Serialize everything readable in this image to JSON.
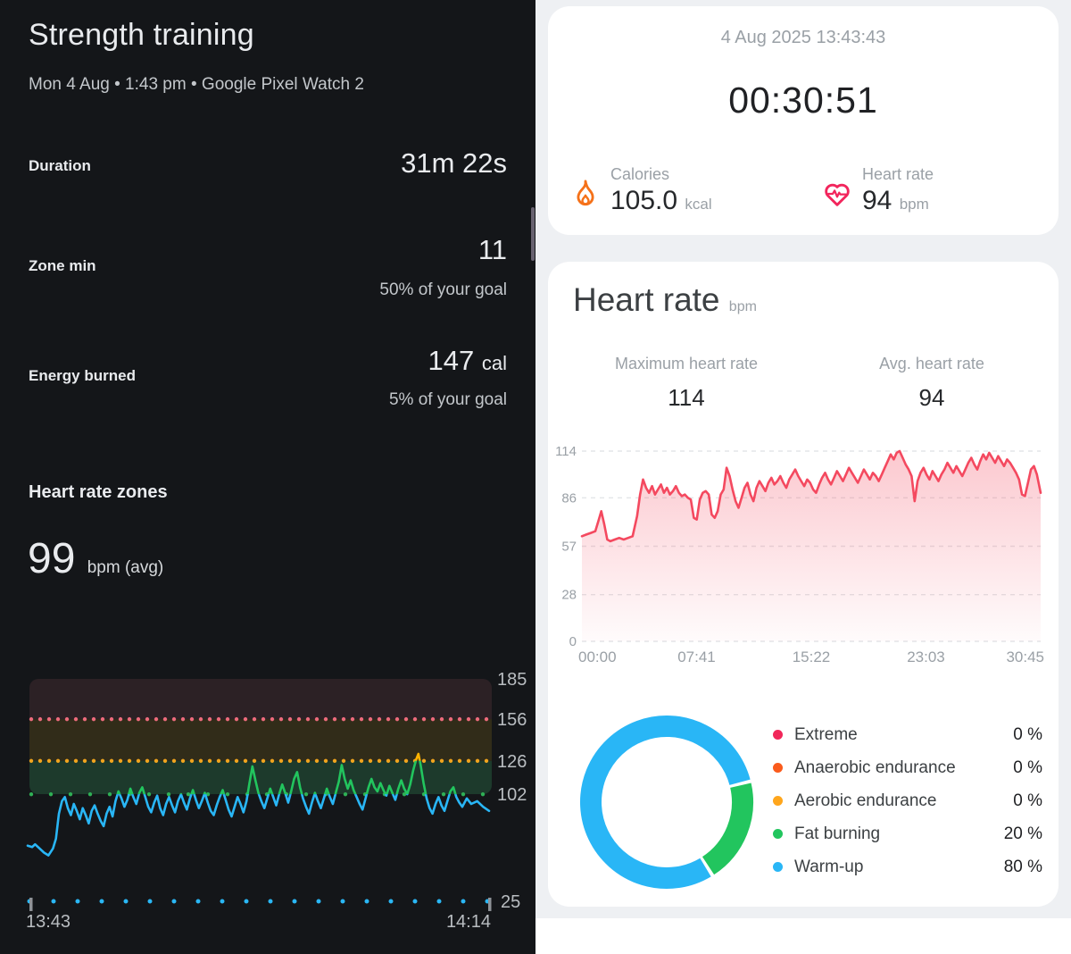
{
  "left_panel": {
    "title": "Strength training",
    "subtitle": "Mon 4 Aug • 1:43 pm • Google Pixel Watch 2",
    "stats": [
      {
        "label": "Duration",
        "value": "31m 22s",
        "unit": "",
        "sub": ""
      },
      {
        "label": "Zone min",
        "value": "11",
        "unit": "",
        "sub": "50% of your goal"
      },
      {
        "label": "Energy burned",
        "value": "147",
        "unit": "cal",
        "sub": "5% of your goal"
      }
    ],
    "zones_header": "Heart rate zones",
    "avg_bpm": "99",
    "avg_bpm_unit": "bpm (avg)"
  },
  "right_panel": {
    "summary_card": {
      "datetime": "4 Aug 2025 13:43:43",
      "timer": "00:30:51",
      "calories": {
        "label": "Calories",
        "value": "105.0",
        "unit": "kcal",
        "icon_color": "#f57119"
      },
      "heart_rate": {
        "label": "Heart rate",
        "value": "94",
        "unit": "bpm",
        "icon_color": "#f2255c"
      }
    },
    "hr_card": {
      "title": "Heart rate",
      "title_unit": "bpm",
      "max_label": "Maximum heart rate",
      "max_value": "114",
      "avg_label": "Avg. heart rate",
      "avg_value": "94"
    }
  },
  "chart_data": [
    {
      "type": "line",
      "id": "zone-chart",
      "title": "Heart rate zones over time",
      "x_range_min": [
        0,
        31
      ],
      "x_tick_labels": [
        "13:43",
        "14:14"
      ],
      "y_axis_labels": [
        185,
        156,
        126,
        102,
        25
      ],
      "axis_label_color": "#b9bdc1",
      "zone_bands": [
        {
          "name": "peak",
          "from": 156,
          "to": 185,
          "fill": "#2c2125",
          "dot_color": "#ec6a7c",
          "dot_gap": 10
        },
        {
          "name": "cardio",
          "from": 126,
          "to": 156,
          "fill": "#312c19",
          "dot_color": "#f0a41e",
          "dot_gap": 10
        },
        {
          "name": "fat-burn",
          "from": 102,
          "to": 126,
          "fill": "#1d3a2c",
          "dot_color": "#2fb055",
          "dot_gap": 22
        }
      ],
      "baseline_dots": {
        "value": 25,
        "color": "#2ab7f5",
        "dot_gap": 27
      },
      "segment_colors": {
        "above_126": "#ffb300",
        "between_102_126": "#22c55e",
        "below_102": "#29b6f6"
      },
      "points": [
        [
          0,
          65
        ],
        [
          0.3,
          64
        ],
        [
          0.5,
          66
        ],
        [
          0.8,
          63
        ],
        [
          1.1,
          60
        ],
        [
          1.4,
          58
        ],
        [
          1.7,
          63
        ],
        [
          1.9,
          70
        ],
        [
          2.1,
          88
        ],
        [
          2.3,
          97
        ],
        [
          2.5,
          100
        ],
        [
          2.7,
          92
        ],
        [
          2.9,
          87
        ],
        [
          3.1,
          95
        ],
        [
          3.3,
          90
        ],
        [
          3.5,
          84
        ],
        [
          3.7,
          92
        ],
        [
          3.9,
          87
        ],
        [
          4.1,
          81
        ],
        [
          4.3,
          90
        ],
        [
          4.5,
          94
        ],
        [
          4.7,
          88
        ],
        [
          4.9,
          83
        ],
        [
          5.1,
          79
        ],
        [
          5.3,
          88
        ],
        [
          5.5,
          93
        ],
        [
          5.7,
          86
        ],
        [
          5.9,
          97
        ],
        [
          6.1,
          104
        ],
        [
          6.3,
          99
        ],
        [
          6.5,
          93
        ],
        [
          6.7,
          98
        ],
        [
          6.9,
          106
        ],
        [
          7.1,
          100
        ],
        [
          7.3,
          95
        ],
        [
          7.5,
          103
        ],
        [
          7.7,
          107
        ],
        [
          7.9,
          100
        ],
        [
          8.1,
          93
        ],
        [
          8.3,
          89
        ],
        [
          8.5,
          96
        ],
        [
          8.7,
          101
        ],
        [
          8.9,
          92
        ],
        [
          9.1,
          87
        ],
        [
          9.3,
          95
        ],
        [
          9.5,
          100
        ],
        [
          9.7,
          94
        ],
        [
          9.9,
          89
        ],
        [
          10.1,
          97
        ],
        [
          10.3,
          102
        ],
        [
          10.5,
          96
        ],
        [
          10.7,
          91
        ],
        [
          10.9,
          99
        ],
        [
          11.1,
          105
        ],
        [
          11.3,
          98
        ],
        [
          11.5,
          92
        ],
        [
          11.7,
          97
        ],
        [
          11.9,
          103
        ],
        [
          12.1,
          96
        ],
        [
          12.3,
          90
        ],
        [
          12.5,
          87
        ],
        [
          12.7,
          94
        ],
        [
          12.9,
          100
        ],
        [
          13.1,
          105
        ],
        [
          13.3,
          98
        ],
        [
          13.5,
          91
        ],
        [
          13.7,
          86
        ],
        [
          13.9,
          93
        ],
        [
          14.1,
          100
        ],
        [
          14.3,
          95
        ],
        [
          14.5,
          89
        ],
        [
          14.7,
          97
        ],
        [
          14.9,
          110
        ],
        [
          15.1,
          122
        ],
        [
          15.3,
          112
        ],
        [
          15.5,
          103
        ],
        [
          15.7,
          97
        ],
        [
          15.9,
          92
        ],
        [
          16.1,
          99
        ],
        [
          16.3,
          106
        ],
        [
          16.5,
          100
        ],
        [
          16.7,
          94
        ],
        [
          16.9,
          102
        ],
        [
          17.1,
          109
        ],
        [
          17.3,
          103
        ],
        [
          17.5,
          96
        ],
        [
          17.7,
          104
        ],
        [
          17.9,
          113
        ],
        [
          18.1,
          118
        ],
        [
          18.3,
          107
        ],
        [
          18.5,
          99
        ],
        [
          18.7,
          93
        ],
        [
          18.9,
          88
        ],
        [
          19.1,
          96
        ],
        [
          19.3,
          103
        ],
        [
          19.5,
          97
        ],
        [
          19.7,
          92
        ],
        [
          19.9,
          99
        ],
        [
          20.1,
          106
        ],
        [
          20.3,
          100
        ],
        [
          20.5,
          95
        ],
        [
          20.7,
          103
        ],
        [
          20.9,
          111
        ],
        [
          21.1,
          123
        ],
        [
          21.3,
          113
        ],
        [
          21.5,
          106
        ],
        [
          21.7,
          112
        ],
        [
          21.9,
          105
        ],
        [
          22.1,
          100
        ],
        [
          22.3,
          95
        ],
        [
          22.5,
          91
        ],
        [
          22.7,
          99
        ],
        [
          22.9,
          107
        ],
        [
          23.1,
          113
        ],
        [
          23.3,
          107
        ],
        [
          23.5,
          104
        ],
        [
          23.7,
          110
        ],
        [
          23.9,
          105
        ],
        [
          24.1,
          101
        ],
        [
          24.3,
          108
        ],
        [
          24.5,
          103
        ],
        [
          24.7,
          98
        ],
        [
          24.9,
          106
        ],
        [
          25.1,
          112
        ],
        [
          25.3,
          106
        ],
        [
          25.5,
          102
        ],
        [
          25.7,
          109
        ],
        [
          25.9,
          119
        ],
        [
          26.1,
          127
        ],
        [
          26.25,
          131
        ],
        [
          26.4,
          123
        ],
        [
          26.6,
          110
        ],
        [
          26.8,
          99
        ],
        [
          27,
          92
        ],
        [
          27.2,
          88
        ],
        [
          27.4,
          95
        ],
        [
          27.6,
          100
        ],
        [
          27.8,
          94
        ],
        [
          28,
          90
        ],
        [
          28.2,
          97
        ],
        [
          28.4,
          104
        ],
        [
          28.6,
          107
        ],
        [
          28.8,
          100
        ],
        [
          29,
          96
        ],
        [
          29.2,
          93
        ],
        [
          29.5,
          99
        ],
        [
          29.8,
          95
        ],
        [
          30.2,
          97
        ],
        [
          30.6,
          93
        ],
        [
          31,
          90
        ]
      ]
    },
    {
      "type": "area",
      "id": "hr-chart",
      "title": "Heart rate bpm",
      "line_color": "#f4495f",
      "grid_color": "#e3e5e8",
      "axis_label_color": "#9aa0a6",
      "x_tick_labels": [
        "00:00",
        "07:41",
        "15:22",
        "23:03",
        "30:45"
      ],
      "x_range_min": [
        0,
        30.75
      ],
      "y_ticks": [
        0,
        28,
        57,
        86,
        114
      ],
      "ylim": [
        0,
        114
      ],
      "points": [
        [
          0,
          63
        ],
        [
          0.3,
          64
        ],
        [
          0.6,
          65
        ],
        [
          0.9,
          66
        ],
        [
          1.1,
          72
        ],
        [
          1.3,
          78
        ],
        [
          1.5,
          70
        ],
        [
          1.7,
          61
        ],
        [
          1.9,
          60
        ],
        [
          2.2,
          61
        ],
        [
          2.5,
          62
        ],
        [
          2.8,
          61
        ],
        [
          3.1,
          62
        ],
        [
          3.4,
          63
        ],
        [
          3.7,
          75
        ],
        [
          3.9,
          88
        ],
        [
          4.1,
          97
        ],
        [
          4.3,
          92
        ],
        [
          4.5,
          89
        ],
        [
          4.7,
          93
        ],
        [
          4.9,
          88
        ],
        [
          5.1,
          91
        ],
        [
          5.3,
          94
        ],
        [
          5.5,
          89
        ],
        [
          5.7,
          92
        ],
        [
          5.9,
          88
        ],
        [
          6.1,
          90
        ],
        [
          6.3,
          93
        ],
        [
          6.5,
          89
        ],
        [
          6.7,
          87
        ],
        [
          6.9,
          88
        ],
        [
          7.1,
          86
        ],
        [
          7.3,
          85
        ],
        [
          7.5,
          74
        ],
        [
          7.7,
          73
        ],
        [
          7.9,
          85
        ],
        [
          8.1,
          89
        ],
        [
          8.3,
          90
        ],
        [
          8.5,
          88
        ],
        [
          8.7,
          76
        ],
        [
          8.9,
          74
        ],
        [
          9.1,
          78
        ],
        [
          9.3,
          88
        ],
        [
          9.5,
          91
        ],
        [
          9.7,
          104
        ],
        [
          9.9,
          99
        ],
        [
          10.1,
          91
        ],
        [
          10.3,
          84
        ],
        [
          10.5,
          80
        ],
        [
          10.7,
          86
        ],
        [
          10.9,
          92
        ],
        [
          11.1,
          95
        ],
        [
          11.3,
          88
        ],
        [
          11.5,
          84
        ],
        [
          11.7,
          92
        ],
        [
          11.9,
          96
        ],
        [
          12.1,
          93
        ],
        [
          12.3,
          90
        ],
        [
          12.5,
          95
        ],
        [
          12.7,
          98
        ],
        [
          12.9,
          94
        ],
        [
          13.1,
          96
        ],
        [
          13.3,
          99
        ],
        [
          13.5,
          95
        ],
        [
          13.7,
          92
        ],
        [
          13.9,
          97
        ],
        [
          14.1,
          100
        ],
        [
          14.3,
          103
        ],
        [
          14.5,
          99
        ],
        [
          14.7,
          96
        ],
        [
          14.9,
          93
        ],
        [
          15.1,
          97
        ],
        [
          15.3,
          95
        ],
        [
          15.5,
          91
        ],
        [
          15.7,
          89
        ],
        [
          15.9,
          94
        ],
        [
          16.1,
          98
        ],
        [
          16.3,
          101
        ],
        [
          16.5,
          97
        ],
        [
          16.7,
          94
        ],
        [
          16.9,
          98
        ],
        [
          17.1,
          102
        ],
        [
          17.3,
          99
        ],
        [
          17.5,
          96
        ],
        [
          17.7,
          100
        ],
        [
          17.9,
          104
        ],
        [
          18.1,
          101
        ],
        [
          18.3,
          98
        ],
        [
          18.5,
          95
        ],
        [
          18.7,
          99
        ],
        [
          18.9,
          103
        ],
        [
          19.1,
          100
        ],
        [
          19.3,
          97
        ],
        [
          19.5,
          101
        ],
        [
          19.7,
          99
        ],
        [
          19.9,
          96
        ],
        [
          20.1,
          100
        ],
        [
          20.3,
          104
        ],
        [
          20.5,
          108
        ],
        [
          20.7,
          112
        ],
        [
          20.9,
          109
        ],
        [
          21.1,
          113
        ],
        [
          21.3,
          114
        ],
        [
          21.5,
          110
        ],
        [
          21.7,
          106
        ],
        [
          21.9,
          103
        ],
        [
          22.1,
          99
        ],
        [
          22.3,
          84
        ],
        [
          22.5,
          96
        ],
        [
          22.7,
          101
        ],
        [
          22.9,
          104
        ],
        [
          23.1,
          100
        ],
        [
          23.3,
          97
        ],
        [
          23.5,
          102
        ],
        [
          23.7,
          99
        ],
        [
          23.9,
          96
        ],
        [
          24.1,
          100
        ],
        [
          24.3,
          103
        ],
        [
          24.5,
          107
        ],
        [
          24.7,
          104
        ],
        [
          24.9,
          101
        ],
        [
          25.1,
          105
        ],
        [
          25.3,
          102
        ],
        [
          25.5,
          99
        ],
        [
          25.7,
          103
        ],
        [
          25.9,
          107
        ],
        [
          26.1,
          110
        ],
        [
          26.3,
          106
        ],
        [
          26.5,
          103
        ],
        [
          26.7,
          108
        ],
        [
          26.9,
          112
        ],
        [
          27.1,
          109
        ],
        [
          27.3,
          113
        ],
        [
          27.5,
          110
        ],
        [
          27.7,
          107
        ],
        [
          27.9,
          111
        ],
        [
          28.1,
          108
        ],
        [
          28.3,
          105
        ],
        [
          28.5,
          109
        ],
        [
          28.7,
          107
        ],
        [
          28.9,
          104
        ],
        [
          29.1,
          101
        ],
        [
          29.3,
          97
        ],
        [
          29.5,
          88
        ],
        [
          29.7,
          87
        ],
        [
          29.9,
          95
        ],
        [
          30.1,
          103
        ],
        [
          30.3,
          105
        ],
        [
          30.5,
          100
        ],
        [
          30.75,
          89
        ]
      ]
    },
    {
      "type": "pie",
      "id": "zone-donut",
      "donut": true,
      "start_angle": 76,
      "legend_position": "right",
      "segments": [
        {
          "label": "Extreme",
          "pct": 0,
          "color": "#f1275a"
        },
        {
          "label": "Anaerobic endurance",
          "pct": 0,
          "color": "#fa5b1c"
        },
        {
          "label": "Aerobic endurance",
          "pct": 0,
          "color": "#ffa61c"
        },
        {
          "label": "Fat burning",
          "pct": 20,
          "color": "#22c55e"
        },
        {
          "label": "Warm-up",
          "pct": 80,
          "color": "#29b6f6"
        }
      ]
    }
  ]
}
